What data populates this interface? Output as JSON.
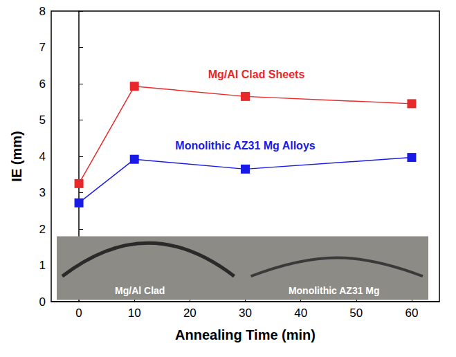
{
  "chart_data": {
    "type": "line",
    "x_label": "Annealing Time (min)",
    "y_label": "IE (mm)",
    "x": [
      0,
      10,
      30,
      60
    ],
    "series": [
      {
        "name": "Mg/Al Clad Sheets",
        "color": "#e8292b",
        "values": [
          3.25,
          5.93,
          5.65,
          5.45
        ]
      },
      {
        "name": "Monolithic AZ31 Mg Alloys",
        "color": "#1a1ae6",
        "values": [
          2.72,
          3.92,
          3.65,
          3.97
        ]
      }
    ],
    "xlim": [
      -5,
      65
    ],
    "xticks": [
      0,
      10,
      20,
      30,
      40,
      50,
      60
    ],
    "ylim": [
      0,
      8
    ],
    "yticks": [
      0,
      1,
      2,
      3,
      4,
      5,
      6,
      7,
      8
    ],
    "grid": false,
    "marker": "square",
    "annotations": [
      "Mg/Al Clad",
      "Monolithic AZ31 Mg"
    ]
  }
}
